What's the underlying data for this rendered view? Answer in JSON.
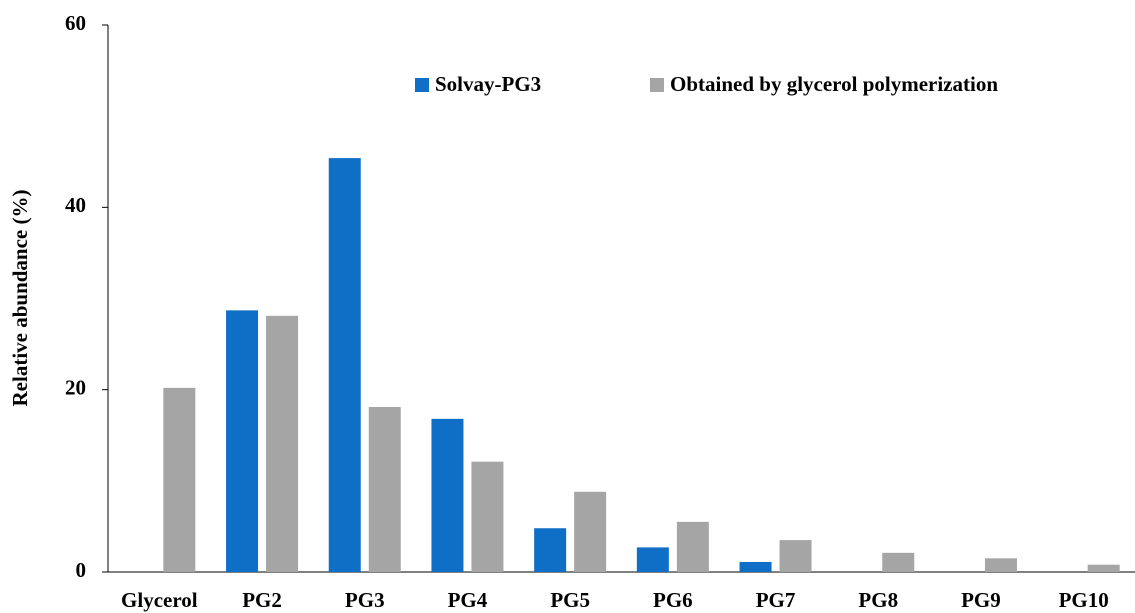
{
  "chart_data": {
    "type": "bar",
    "ylabel": "Relative abundance (%)",
    "categories": [
      "Glycerol",
      "PG2",
      "PG3",
      "PG4",
      "PG5",
      "PG6",
      "PG7",
      "PG8",
      "PG9",
      "PG10"
    ],
    "series": [
      {
        "name": "Solvay-PG3",
        "color": "#0f6fc6",
        "values": [
          0,
          28.7,
          45.4,
          16.8,
          4.8,
          2.7,
          1.1,
          0,
          0,
          0
        ]
      },
      {
        "name": "Obtained by glycerol polymerization",
        "color": "#a5a5a5",
        "values": [
          20.2,
          28.1,
          18.1,
          12.1,
          8.8,
          5.5,
          3.5,
          2.1,
          1.5,
          0.8
        ]
      }
    ],
    "ylim": [
      0,
      60
    ],
    "yticks": [
      0,
      20,
      40,
      60
    ],
    "grid": false
  }
}
